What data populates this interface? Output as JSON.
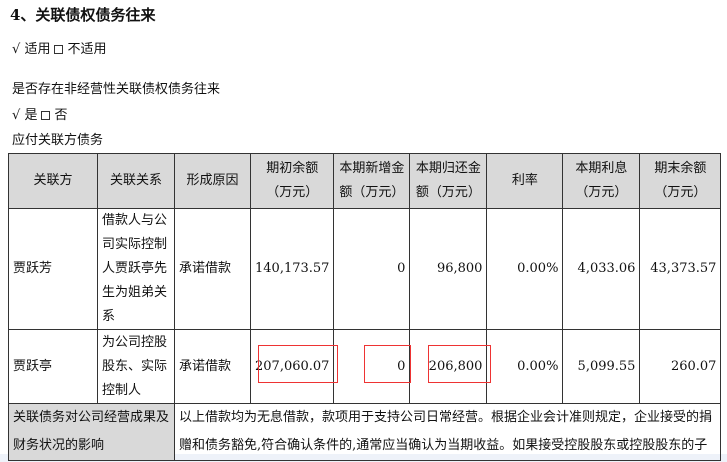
{
  "title": "4、关联债权债务往来",
  "applicable": {
    "check": "√",
    "yes": "适用",
    "no": "不适用"
  },
  "question": "是否存在非经营性关联债权债务往来",
  "answer": {
    "check": "√",
    "yes": "是",
    "no": "否"
  },
  "subtitle": "应付关联方债务",
  "table": {
    "headers": [
      "关联方",
      "关联关系",
      "形成原因",
      "期初余额（万元）",
      "本期新增金额（万元）",
      "本期归还金额（万元）",
      "利率",
      "本期利息（万元）",
      "期末余额（万元）"
    ],
    "rows": [
      [
        "贾跃芳",
        "借款人与公司实际控制人贾跃亭先生为姐弟关系",
        "承诺借款",
        "140,173.57",
        "0",
        "96,800",
        "0.00%",
        "4,033.06",
        "43,373.57"
      ],
      [
        "贾跃亭",
        "为公司控股股东、实际控制人",
        "承诺借款",
        "207,060.07",
        "0",
        "206,800",
        "0.00%",
        "5,099.55",
        "260.07"
      ]
    ],
    "impact_label": "关联债务对公司经营成果及财务状况的影响",
    "impact_text": "以上借款均为无息借款，款项用于支持公司日常经营。根据企业会计准则规定，企业接受的捐赠和债务豁免,符合确认条件的,通常应当确认为当期收益。如果接受控股股东或控股股东的子"
  },
  "highlight_color": "#e33333"
}
